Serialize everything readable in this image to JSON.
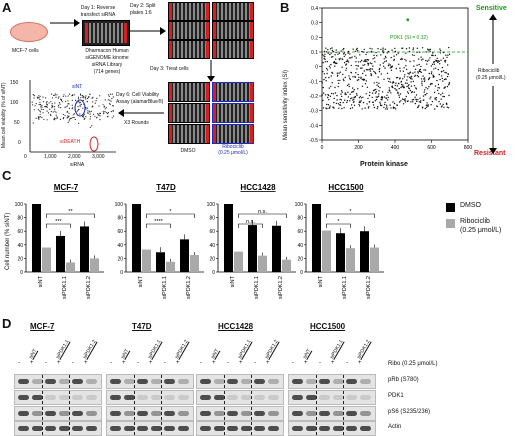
{
  "panelA": {
    "letter": "A",
    "mcf7": "MCF-7 cells",
    "day1a": "Day 1: Reverse",
    "day1b": "transfect siRNA",
    "lib1": "Dharmacon Human",
    "lib2": "siGENOME kinome",
    "lib3": "siRNA Library",
    "lib4": "(714 genes)",
    "day2a": "Day 2: Split",
    "day2b": "plates 1:6",
    "day3": "Day 3: Treat cells",
    "day6a": "Day 6: Cell Viability",
    "day6b": "Assay (alamarBlue®)",
    "rounds": "X3 Rounds",
    "dmso": "DMSO",
    "ribo1": "Ribociclib",
    "ribo2": "(0.25 μmol/L)",
    "ylabel": "Mean cell viability (% of siNT)",
    "xlabel": "siRNA",
    "sint": "siNT",
    "sideath": "siDEATH",
    "yticks": [
      "150",
      "100",
      "50",
      "0"
    ],
    "xticks": [
      "0",
      "1,000",
      "2,000",
      "3,000"
    ]
  },
  "panelB": {
    "letter": "B",
    "ylabel": "Mean sensitivity index (SI)",
    "xlabel": "Protein kinase",
    "pdk1": "PDK1 (SI = 0.32)",
    "sensitive": "Sensitive",
    "resistant": "Resistant",
    "ribo1": "Ribociclib",
    "ribo2": "(0.25 μmol/L)",
    "yticks": [
      "0.4",
      "0.3",
      "0.2",
      "0.1",
      "0",
      "-0.1",
      "-0.2",
      "-0.3",
      "-0.4",
      "-0.5"
    ],
    "xticks": [
      "0",
      "200",
      "400",
      "600",
      "800"
    ]
  },
  "panelC": {
    "letter": "C",
    "ylabel": "Cell number (% siNT)",
    "legend_dmso": "DMSO",
    "legend_ribo1": "Ribociclib",
    "legend_ribo2": "(0.25 μmol/L)",
    "colors": {
      "dmso": "#000000",
      "ribo": "#a9a9a9"
    },
    "yticks": [
      "100",
      "80",
      "60",
      "40",
      "20",
      "0"
    ],
    "categories": [
      "siNT",
      "siPDK1.1",
      "siPDK1.2"
    ],
    "cells": [
      {
        "name": "MCF-7",
        "dmso": [
          100,
          53,
          67
        ],
        "ribo": [
          36,
          14,
          20
        ],
        "sig": [
          "***",
          "**"
        ]
      },
      {
        "name": "T47D",
        "dmso": [
          100,
          29,
          48
        ],
        "ribo": [
          33,
          15,
          25
        ],
        "sig": [
          "****",
          "*"
        ]
      },
      {
        "name": "HCC1428",
        "dmso": [
          100,
          69,
          68
        ],
        "ribo": [
          30,
          24,
          18
        ],
        "sig": [
          "n.s.",
          "n.s."
        ]
      },
      {
        "name": "HCC1500",
        "dmso": [
          100,
          57,
          60
        ],
        "ribo": [
          61,
          35,
          36
        ],
        "sig": [
          "*",
          "*"
        ]
      }
    ]
  },
  "panelD": {
    "letter": "D",
    "cells": [
      "MCF-7",
      "T47D",
      "HCC1428",
      "HCC1500"
    ],
    "lanes": [
      "siNT",
      "siPDK1.1",
      "siPDK1.2"
    ],
    "minus": "-",
    "plus": "+",
    "ribo_label": "Ribo (0.25 μmol/L)",
    "rows": [
      "pRb (S780)",
      "PDK1",
      "pS6 (S235/236)",
      "Actin"
    ]
  }
}
